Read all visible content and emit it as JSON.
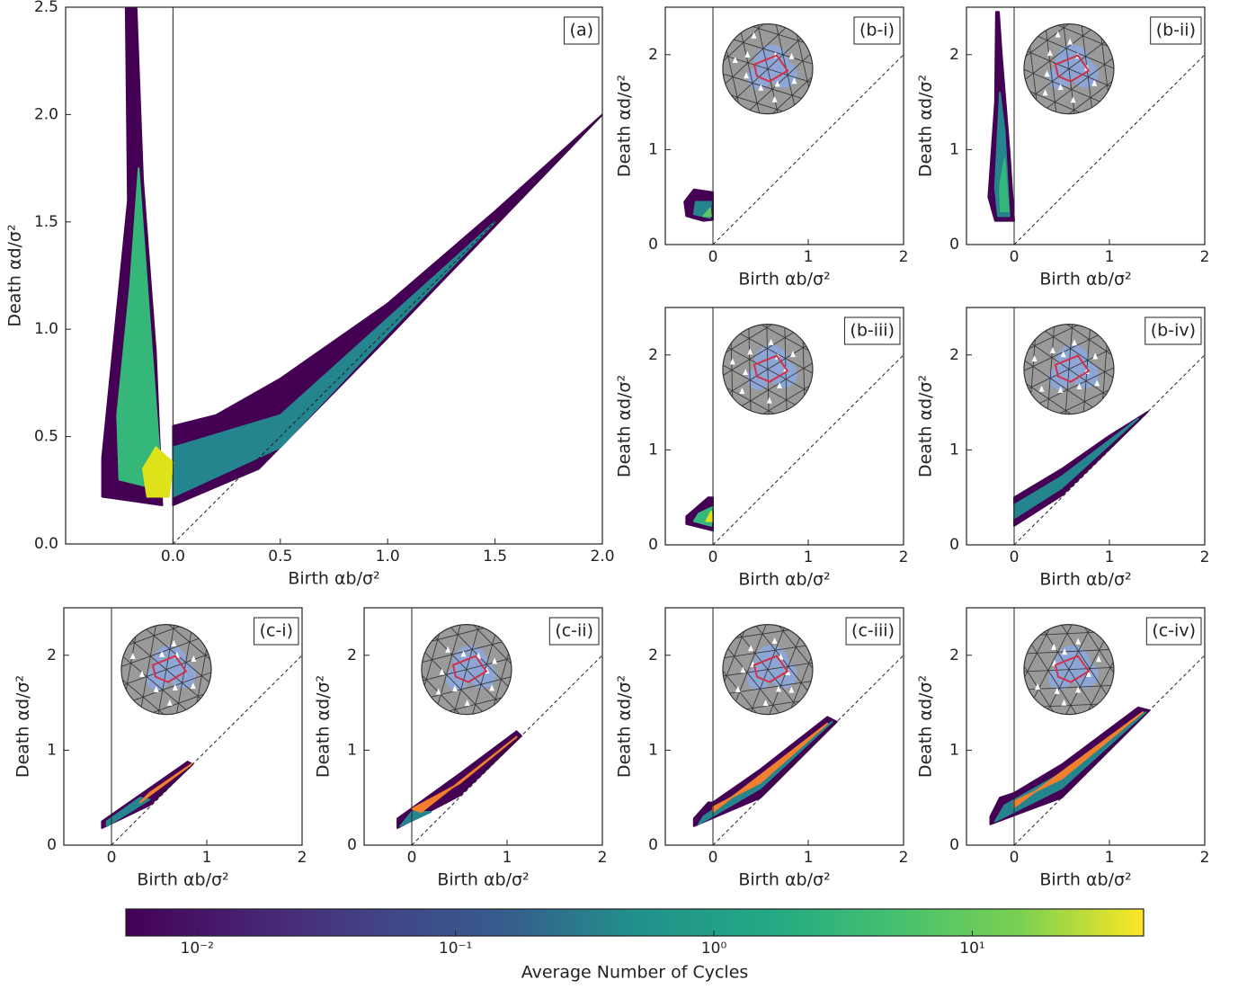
{
  "chart_data": [
    {
      "type": "heatmap",
      "panel_label": "(a)",
      "xlabel": "Birth αb/σ²",
      "ylabel": "Death αd/σ²",
      "xlim": [
        -0.5,
        2.0
      ],
      "ylim": [
        0,
        2.5
      ],
      "xticks": [
        {
          "value": 0,
          "label": "0.0"
        },
        {
          "value": 0.5,
          "label": "0.5"
        },
        {
          "value": 1,
          "label": "1.0"
        },
        {
          "value": 1.5,
          "label": "1.5"
        },
        {
          "value": 2,
          "label": "2.0"
        }
      ],
      "yticks": [
        {
          "value": 0,
          "label": "0.0"
        },
        {
          "value": 0.5,
          "label": "0.5"
        },
        {
          "value": 1,
          "label": "1.0"
        },
        {
          "value": 1.5,
          "label": "1.5"
        },
        {
          "value": 2,
          "label": "2.0"
        },
        {
          "value": 2.5,
          "label": "2.5"
        }
      ],
      "vline": 0,
      "diagonal": true,
      "inset": false,
      "clouds": [
        {
          "color": "#440154",
          "points": [
            [
              -0.33,
              0.22
            ],
            [
              -0.05,
              0.18
            ],
            [
              -0.08,
              0.9
            ],
            [
              -0.14,
              1.7
            ],
            [
              -0.17,
              2.5
            ],
            [
              -0.22,
              2.5
            ],
            [
              -0.21,
              1.6
            ],
            [
              -0.29,
              0.8
            ],
            [
              -0.33,
              0.4
            ]
          ]
        },
        {
          "color": "#440154",
          "points": [
            [
              0,
              0.18
            ],
            [
              0.4,
              0.35
            ],
            [
              1.0,
              0.96
            ],
            [
              2.0,
              2.0
            ],
            [
              1.5,
              1.55
            ],
            [
              1.0,
              1.12
            ],
            [
              0.5,
              0.77
            ],
            [
              0.2,
              0.6
            ],
            [
              0,
              0.55
            ]
          ]
        },
        {
          "color": "#25858e",
          "points": [
            [
              0,
              0.22
            ],
            [
              0.5,
              0.45
            ],
            [
              1.0,
              0.98
            ],
            [
              1.5,
              1.5
            ],
            [
              1.0,
              1.05
            ],
            [
              0.5,
              0.6
            ],
            [
              0,
              0.45
            ]
          ]
        },
        {
          "color": "#35b779",
          "points": [
            [
              -0.25,
              0.3
            ],
            [
              -0.05,
              0.25
            ],
            [
              -0.12,
              1.2
            ],
            [
              -0.16,
              1.75
            ],
            [
              -0.2,
              1.2
            ],
            [
              -0.26,
              0.6
            ]
          ]
        },
        {
          "color": "#dde318",
          "points": [
            [
              -0.12,
              0.22
            ],
            [
              -0.02,
              0.22
            ],
            [
              0,
              0.38
            ],
            [
              -0.08,
              0.45
            ],
            [
              -0.14,
              0.35
            ]
          ]
        }
      ]
    },
    {
      "type": "heatmap",
      "panel_label": "(b-i)",
      "xlabel": "Birth αb/σ²",
      "ylabel": "Death αd/σ²",
      "xlim": [
        -0.5,
        2
      ],
      "ylim": [
        0,
        2.5
      ],
      "xticks": [
        0,
        1,
        2
      ],
      "yticks": [
        0,
        1,
        2
      ],
      "vline": 0,
      "diagonal": true,
      "inset": true,
      "clouds": [
        {
          "color": "#440154",
          "points": [
            [
              -0.28,
              0.3
            ],
            [
              -0.1,
              0.25
            ],
            [
              0,
              0.26
            ],
            [
              0,
              0.55
            ],
            [
              -0.2,
              0.58
            ],
            [
              -0.3,
              0.45
            ]
          ]
        },
        {
          "color": "#25858e",
          "points": [
            [
              -0.2,
              0.32
            ],
            [
              -0.03,
              0.28
            ],
            [
              -0.02,
              0.45
            ],
            [
              -0.18,
              0.45
            ]
          ]
        },
        {
          "color": "#5ec962",
          "points": [
            [
              -0.1,
              0.3
            ],
            [
              -0.02,
              0.3
            ],
            [
              -0.03,
              0.38
            ]
          ]
        }
      ]
    },
    {
      "type": "heatmap",
      "panel_label": "(b-ii)",
      "xlabel": "Birth αb/σ²",
      "ylabel": "Death αd/σ²",
      "xlim": [
        -0.5,
        2
      ],
      "ylim": [
        0,
        2.5
      ],
      "xticks": [
        0,
        1,
        2
      ],
      "yticks": [
        0,
        1,
        2
      ],
      "vline": 0,
      "diagonal": true,
      "inset": true,
      "clouds": [
        {
          "color": "#440154",
          "points": [
            [
              -0.2,
              0.25
            ],
            [
              0,
              0.25
            ],
            [
              -0.05,
              1.0
            ],
            [
              -0.13,
              2.0
            ],
            [
              -0.16,
              2.45
            ],
            [
              -0.19,
              2.45
            ],
            [
              -0.2,
              1.5
            ],
            [
              -0.27,
              0.5
            ]
          ]
        },
        {
          "color": "#25858e",
          "points": [
            [
              -0.17,
              0.3
            ],
            [
              -0.05,
              0.3
            ],
            [
              -0.1,
              1.2
            ],
            [
              -0.15,
              1.6
            ],
            [
              -0.2,
              0.6
            ]
          ]
        },
        {
          "color": "#35b779",
          "points": [
            [
              -0.14,
              0.35
            ],
            [
              -0.06,
              0.35
            ],
            [
              -0.1,
              0.9
            ],
            [
              -0.15,
              0.6
            ]
          ]
        }
      ]
    },
    {
      "type": "heatmap",
      "panel_label": "(b-iii)",
      "xlabel": "Birth αb/σ²",
      "ylabel": "Death αd/σ²",
      "xlim": [
        -0.5,
        2
      ],
      "ylim": [
        0,
        2.5
      ],
      "xticks": [
        0,
        1,
        2
      ],
      "yticks": [
        0,
        1,
        2
      ],
      "vline": 0,
      "diagonal": true,
      "inset": true,
      "clouds": [
        {
          "color": "#440154",
          "points": [
            [
              -0.28,
              0.22
            ],
            [
              0,
              0.15
            ],
            [
              0,
              0.5
            ],
            [
              -0.05,
              0.5
            ],
            [
              -0.28,
              0.3
            ]
          ]
        },
        {
          "color": "#35b779",
          "points": [
            [
              -0.2,
              0.25
            ],
            [
              -0.02,
              0.2
            ],
            [
              0,
              0.4
            ],
            [
              -0.15,
              0.33
            ]
          ]
        },
        {
          "color": "#dde318",
          "points": [
            [
              -0.07,
              0.25
            ],
            [
              -0.01,
              0.25
            ],
            [
              -0.02,
              0.35
            ]
          ]
        }
      ]
    },
    {
      "type": "heatmap",
      "panel_label": "(b-iv)",
      "xlabel": "Birth αb/σ²",
      "ylabel": "Death αd/σ²",
      "xlim": [
        -0.5,
        2
      ],
      "ylim": [
        0,
        2.5
      ],
      "xticks": [
        0,
        1,
        2
      ],
      "yticks": [
        0,
        1,
        2
      ],
      "vline": 0,
      "diagonal": true,
      "inset": true,
      "clouds": [
        {
          "color": "#440154",
          "points": [
            [
              0,
              0.2
            ],
            [
              0.5,
              0.52
            ],
            [
              1.4,
              1.4
            ],
            [
              1.0,
              1.15
            ],
            [
              0.5,
              0.8
            ],
            [
              0,
              0.5
            ]
          ]
        },
        {
          "color": "#25858e",
          "points": [
            [
              0,
              0.28
            ],
            [
              0.5,
              0.6
            ],
            [
              1.3,
              1.33
            ],
            [
              0.5,
              0.72
            ],
            [
              0,
              0.42
            ]
          ]
        }
      ]
    },
    {
      "type": "heatmap",
      "panel_label": "(c-i)",
      "xlabel": "Birth αb/σ²",
      "ylabel": "Death αd/σ²",
      "xlim": [
        -0.5,
        2
      ],
      "ylim": [
        0,
        2.5
      ],
      "xticks": [
        0,
        1,
        2
      ],
      "yticks": [
        0,
        1,
        2
      ],
      "vline": 0,
      "diagonal": true,
      "inset": true,
      "clouds": [
        {
          "color": "#440154",
          "points": [
            [
              -0.1,
              0.18
            ],
            [
              0.4,
              0.42
            ],
            [
              0.85,
              0.85
            ],
            [
              0.8,
              0.88
            ],
            [
              0.4,
              0.6
            ],
            [
              -0.1,
              0.25
            ]
          ]
        },
        {
          "color": "#25858e",
          "points": [
            [
              -0.05,
              0.2
            ],
            [
              0.4,
              0.48
            ],
            [
              0.3,
              0.5
            ],
            [
              -0.05,
              0.25
            ]
          ]
        },
        {
          "color": "#f07f2e",
          "points": [
            [
              0.3,
              0.45
            ],
            [
              0.85,
              0.86
            ],
            [
              0.4,
              0.55
            ]
          ]
        }
      ]
    },
    {
      "type": "heatmap",
      "panel_label": "(c-ii)",
      "xlabel": "Birth αb/σ²",
      "ylabel": "Death αd/σ²",
      "xlim": [
        -0.5,
        2
      ],
      "ylim": [
        0,
        2.5
      ],
      "xticks": [
        0,
        1,
        2
      ],
      "yticks": [
        0,
        1,
        2
      ],
      "vline": 0,
      "diagonal": true,
      "inset": true,
      "clouds": [
        {
          "color": "#440154",
          "points": [
            [
              -0.15,
              0.18
            ],
            [
              0.5,
              0.52
            ],
            [
              1.15,
              1.15
            ],
            [
              1.1,
              1.2
            ],
            [
              0.5,
              0.75
            ],
            [
              -0.15,
              0.28
            ]
          ]
        },
        {
          "color": "#25858e",
          "points": [
            [
              -0.12,
              0.2
            ],
            [
              0.2,
              0.35
            ],
            [
              0,
              0.35
            ]
          ]
        },
        {
          "color": "#f07f2e",
          "points": [
            [
              0.1,
              0.35
            ],
            [
              1.1,
              1.14
            ],
            [
              0.5,
              0.65
            ],
            [
              0,
              0.38
            ]
          ]
        }
      ]
    },
    {
      "type": "heatmap",
      "panel_label": "(c-iii)",
      "xlabel": "Birth αb/σ²",
      "ylabel": "Death αd/σ²",
      "xlim": [
        -0.5,
        2
      ],
      "ylim": [
        0,
        2.5
      ],
      "xticks": [
        0,
        1,
        2
      ],
      "yticks": [
        0,
        1,
        2
      ],
      "vline": 0,
      "diagonal": true,
      "inset": true,
      "clouds": [
        {
          "color": "#440154",
          "points": [
            [
              -0.2,
              0.2
            ],
            [
              0.5,
              0.5
            ],
            [
              1.3,
              1.3
            ],
            [
              1.2,
              1.35
            ],
            [
              0.5,
              0.8
            ],
            [
              0,
              0.45
            ],
            [
              -0.05,
              0.45
            ],
            [
              -0.2,
              0.28
            ]
          ]
        },
        {
          "color": "#25858e",
          "points": [
            [
              -0.15,
              0.22
            ],
            [
              0.5,
              0.6
            ],
            [
              1.25,
              1.3
            ],
            [
              0.5,
              0.72
            ],
            [
              -0.1,
              0.3
            ]
          ]
        },
        {
          "color": "#f07f2e",
          "points": [
            [
              0,
              0.35
            ],
            [
              1.2,
              1.28
            ],
            [
              0.5,
              0.66
            ],
            [
              0,
              0.4
            ]
          ]
        }
      ]
    },
    {
      "type": "heatmap",
      "panel_label": "(c-iv)",
      "xlabel": "Birth αb/σ²",
      "ylabel": "Death αd/σ²",
      "xlim": [
        -0.5,
        2
      ],
      "ylim": [
        0,
        2.5
      ],
      "xticks": [
        0,
        1,
        2
      ],
      "yticks": [
        0,
        1,
        2
      ],
      "vline": 0,
      "diagonal": true,
      "inset": true,
      "clouds": [
        {
          "color": "#440154",
          "points": [
            [
              -0.25,
              0.22
            ],
            [
              0.5,
              0.5
            ],
            [
              1.42,
              1.42
            ],
            [
              1.3,
              1.45
            ],
            [
              0.5,
              0.85
            ],
            [
              0,
              0.55
            ],
            [
              -0.15,
              0.5
            ],
            [
              -0.25,
              0.3
            ]
          ]
        },
        {
          "color": "#25858e",
          "points": [
            [
              -0.2,
              0.25
            ],
            [
              0.5,
              0.6
            ],
            [
              1.38,
              1.4
            ],
            [
              0.5,
              0.76
            ],
            [
              -0.1,
              0.42
            ]
          ]
        },
        {
          "color": "#f07f2e",
          "points": [
            [
              0,
              0.4
            ],
            [
              1.35,
              1.4
            ],
            [
              0.5,
              0.7
            ],
            [
              0,
              0.46
            ]
          ]
        }
      ]
    },
    {
      "type": "colorbar",
      "label": "Average Number of Cycles",
      "colormap": "viridis",
      "log": true,
      "lim": [
        0.0053,
        46
      ],
      "ticks": [
        {
          "value": 0.01,
          "label": "10⁻²"
        },
        {
          "value": 0.1,
          "label": "10⁻¹"
        },
        {
          "value": 1,
          "label": "10⁰"
        },
        {
          "value": 10,
          "label": "10¹"
        }
      ]
    }
  ]
}
